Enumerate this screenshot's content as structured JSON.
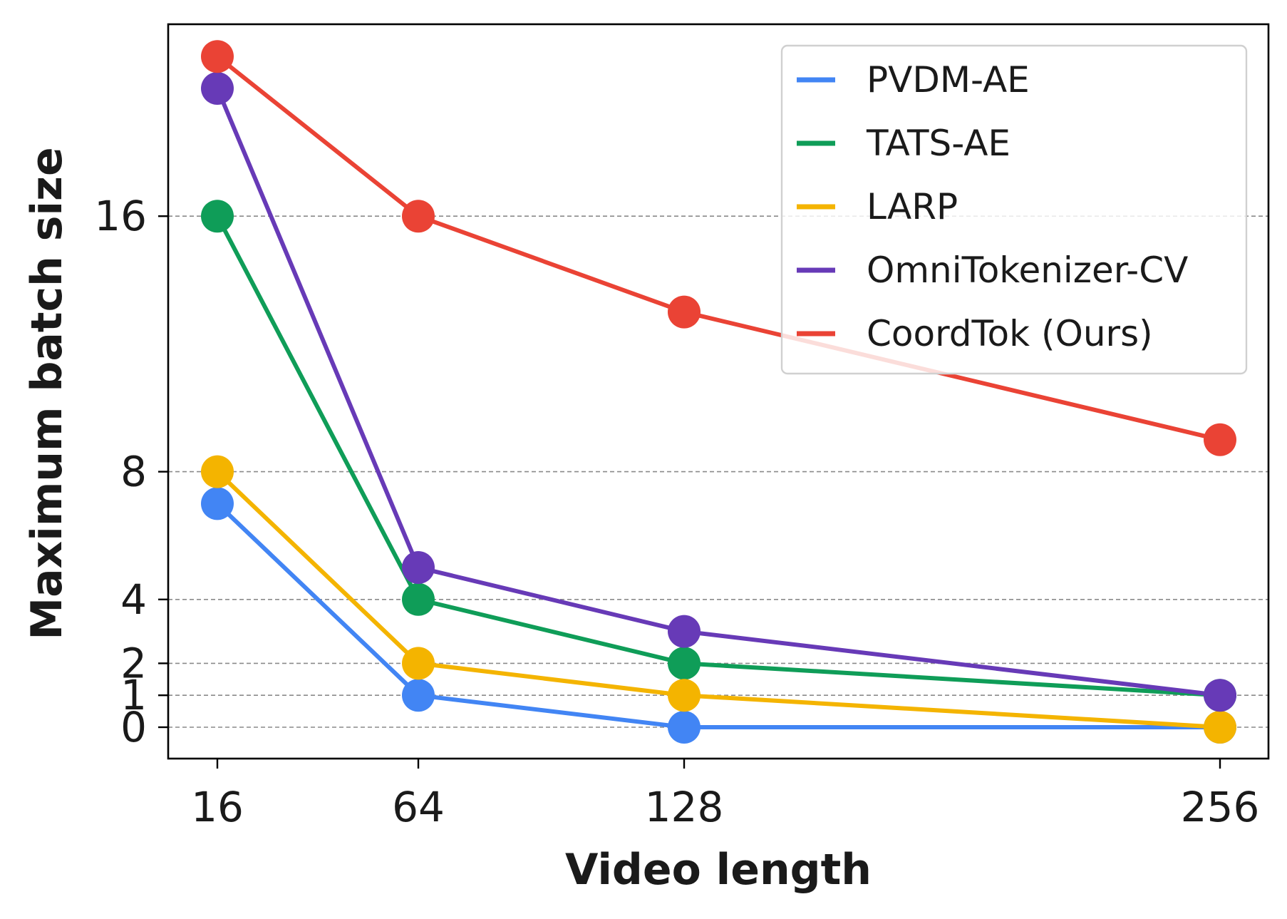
{
  "chart_data": {
    "type": "line",
    "title": "",
    "xlabel": "Video length",
    "ylabel": "Maximum batch size",
    "x_ticks": [
      "16",
      "64",
      "128",
      "256"
    ],
    "y_ticks": [
      "0",
      "1",
      "2",
      "4",
      "8",
      "16"
    ],
    "y_tick_values": [
      0,
      1,
      2,
      4,
      8,
      16
    ],
    "y_scale": "symlog-like (ticks at 0, 1, 2, 4, 8, 16)",
    "grid": "horizontal dashed lines at y ticks",
    "legend_position": "top-right",
    "series": [
      {
        "name": "PVDM-AE",
        "color": "#4285f4",
        "x": [
          16,
          64,
          128,
          256
        ],
        "values": [
          7,
          1,
          0,
          0
        ]
      },
      {
        "name": "TATS-AE",
        "color": "#0f9d58",
        "x": [
          16,
          64,
          128,
          256
        ],
        "values": [
          16,
          4,
          2,
          1
        ]
      },
      {
        "name": "LARP",
        "color": "#f4b400",
        "x": [
          16,
          64,
          128,
          256
        ],
        "values": [
          8,
          2,
          1,
          0
        ]
      },
      {
        "name": "OmniTokenizer-CV",
        "color": "#673ab7",
        "x": [
          16,
          64,
          128,
          256
        ],
        "values": [
          20,
          5,
          3,
          1
        ]
      },
      {
        "name": "CoordTok (Ours)",
        "color": "#ea4335",
        "x": [
          16,
          64,
          128,
          256
        ],
        "values": [
          21,
          16,
          13,
          9
        ]
      }
    ]
  }
}
